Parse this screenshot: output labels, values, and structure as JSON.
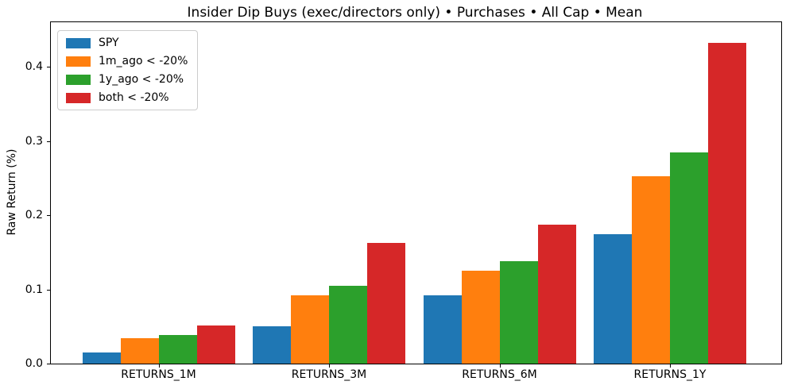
{
  "chart_data": {
    "type": "bar",
    "title": "Insider Dip Buys (exec/directors only) • Purchases • All Cap • Mean",
    "xlabel": "",
    "ylabel": "Raw Return (%)",
    "categories": [
      "RETURNS_1M",
      "RETURNS_3M",
      "RETURNS_6M",
      "RETURNS_1Y"
    ],
    "series": [
      {
        "name": "SPY",
        "color": "#1f77b4",
        "values": [
          0.015,
          0.05,
          0.092,
          0.174
        ]
      },
      {
        "name": "1m_ago < -20%",
        "color": "#ff7f0e",
        "values": [
          0.034,
          0.092,
          0.125,
          0.252
        ]
      },
      {
        "name": "1y_ago < -20%",
        "color": "#2ca02c",
        "values": [
          0.039,
          0.105,
          0.138,
          0.285
        ]
      },
      {
        "name": "both < -20%",
        "color": "#d62728",
        "values": [
          0.051,
          0.163,
          0.187,
          0.432
        ]
      }
    ],
    "yticks": [
      0.0,
      0.1,
      0.2,
      0.3,
      0.4
    ],
    "ylim": [
      0,
      0.46
    ],
    "grid": false,
    "legend_position": "upper-left",
    "spine_color": "#000000",
    "background_color": "#ffffff"
  }
}
